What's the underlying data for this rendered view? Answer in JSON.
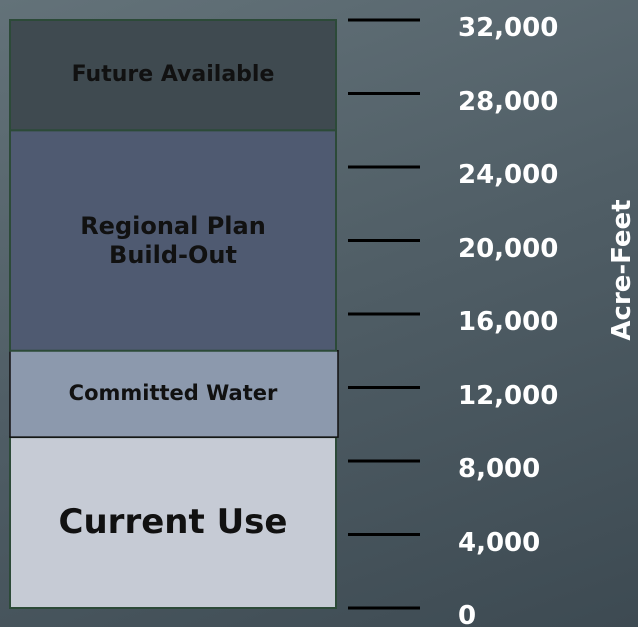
{
  "chart_data": {
    "type": "stacked-bar",
    "categories": [
      null
    ],
    "series": [
      {
        "name": "Current Use",
        "color": "#c6cbd5",
        "values": [
          9300
        ]
      },
      {
        "name": "Committed Water",
        "color": "#8c99ad",
        "values": [
          4700
        ]
      },
      {
        "name": "Regional Plan Build-Out",
        "color": "#4f5a71",
        "values": [
          12000
        ]
      },
      {
        "name": "Future Available",
        "color": "#3f4a50",
        "values": [
          6000
        ]
      }
    ],
    "ylabel": "Acre-Feet",
    "ylim": [
      0,
      32000
    ],
    "yticks": [
      0,
      {
        "value": 4000,
        "label": "4,000"
      },
      {
        "value": 8000,
        "label": "8,000"
      },
      {
        "value": 12000,
        "label": "12,000"
      },
      {
        "value": 16000,
        "label": "16,000"
      },
      {
        "value": 20000,
        "label": "20,000"
      },
      {
        "value": 24000,
        "label": "24,000"
      },
      {
        "value": 28000,
        "label": "28,000"
      },
      {
        "value": 32000,
        "label": "32,000"
      }
    ]
  }
}
